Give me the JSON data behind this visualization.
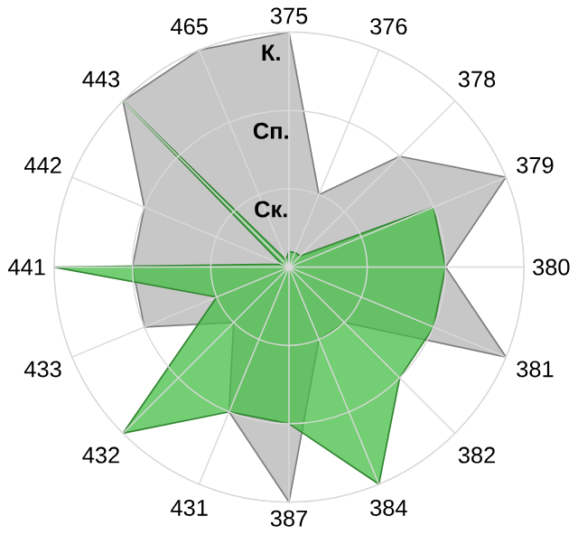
{
  "chart_data": {
    "type": "radar",
    "categories": [
      "375",
      "376",
      "378",
      "379",
      "380",
      "381",
      "382",
      "384",
      "387",
      "431",
      "432",
      "433",
      "441",
      "442",
      "443",
      "465"
    ],
    "ylim": [
      0,
      3
    ],
    "yticks": [
      {
        "value": 1,
        "label": "Ск."
      },
      {
        "value": 2,
        "label": "Сп."
      },
      {
        "value": 3,
        "label": "К."
      }
    ],
    "grid": true,
    "series": [
      {
        "color": "#b4b4b4",
        "values": [
          3,
          1,
          2,
          3,
          2,
          3,
          1,
          1,
          3,
          2,
          1,
          2,
          2,
          2,
          3,
          3
        ]
      },
      {
        "color": "#46be46",
        "values": [
          0.2,
          0.2,
          0.2,
          2,
          2,
          2,
          2,
          3,
          2,
          2,
          3,
          1,
          3,
          0.1,
          3,
          0.1
        ]
      }
    ]
  }
}
